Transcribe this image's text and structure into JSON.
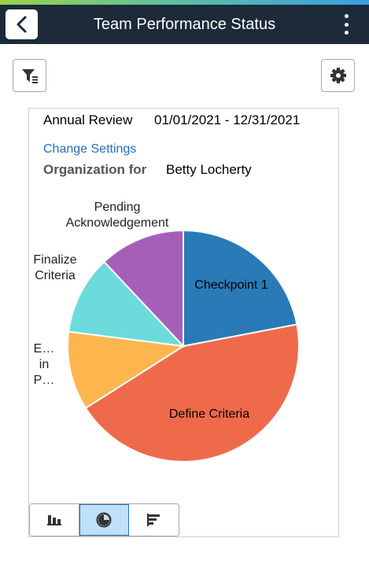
{
  "header": {
    "title": "Team Performance Status",
    "icons": {
      "back": "chevron-left-icon",
      "menu": "kebab-menu-icon"
    }
  },
  "toolbar": {
    "filter_icon": "filter-icon",
    "settings_icon": "gear-icon"
  },
  "review": {
    "label": "Annual Review",
    "dates": "01/01/2021 - 12/31/2021",
    "change_settings": "Change Settings",
    "org_label": "Organization for",
    "org_name": "Betty Locherty"
  },
  "chart_data": {
    "type": "pie",
    "slices": [
      {
        "label": "Checkpoint 1",
        "value": 22,
        "color": "#2a7ab8"
      },
      {
        "label": "Define Criteria",
        "value": 44,
        "color": "#ef6a4b"
      },
      {
        "label_lines": [
          "E…",
          "in",
          "P…"
        ],
        "value": 11,
        "color": "#fdb64e"
      },
      {
        "label_lines": [
          "Finalize",
          "Criteria"
        ],
        "value": 11,
        "color": "#6cdbdc"
      },
      {
        "label_lines": [
          "Pending",
          "Acknowledgement"
        ],
        "value": 12,
        "color": "#a55fb9"
      }
    ]
  },
  "view_switch": {
    "options": [
      {
        "icon": "bar-chart-icon",
        "selected": false
      },
      {
        "icon": "pie-chart-icon",
        "selected": true
      },
      {
        "icon": "horizontal-bar-chart-icon",
        "selected": false
      }
    ]
  }
}
